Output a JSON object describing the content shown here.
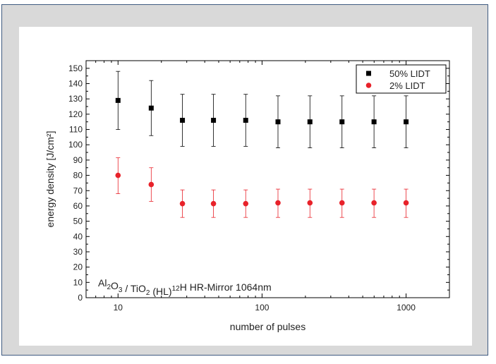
{
  "chart_data": {
    "type": "scatter",
    "xscale": "log",
    "xlim": [
      6,
      2000
    ],
    "ylim": [
      0,
      155
    ],
    "xlabel": "number of pulses",
    "ylabel": "energy density [J/cm²]",
    "xticks": [
      10,
      100,
      1000
    ],
    "yticks": [
      0,
      10,
      20,
      30,
      40,
      50,
      60,
      70,
      80,
      90,
      100,
      110,
      120,
      130,
      140,
      150
    ],
    "grid": false,
    "legend_position": "top-right",
    "annotation": {
      "parts": [
        {
          "t": "Al",
          "s": "normal"
        },
        {
          "t": "2",
          "s": "sub"
        },
        {
          "t": "O",
          "s": "normal"
        },
        {
          "t": "3",
          "s": "sub"
        },
        {
          "t": " / TiO",
          "s": "normal"
        },
        {
          "t": "2",
          "s": "sub"
        },
        {
          "t": " (HL)",
          "s": "normal"
        },
        {
          "t": "12",
          "s": "sup"
        },
        {
          "t": "H HR-Mirror 1064nm",
          "s": "normal"
        }
      ]
    },
    "series": [
      {
        "name": "50% LIDT",
        "marker": "square",
        "color": "#000000",
        "x": [
          10,
          17,
          28,
          46,
          77,
          129,
          215,
          359,
          599,
          1000
        ],
        "y": [
          129,
          124,
          116,
          116,
          116,
          115,
          115,
          115,
          115,
          115
        ],
        "err_low": [
          110,
          106,
          99,
          99,
          99,
          98,
          98,
          98,
          98,
          98
        ],
        "err_high": [
          148,
          142,
          133,
          133,
          133,
          132,
          132,
          132,
          132,
          132
        ]
      },
      {
        "name": "2% LIDT",
        "marker": "circle",
        "color": "#e8222a",
        "x": [
          10,
          17,
          28,
          46,
          77,
          129,
          215,
          359,
          599,
          1000
        ],
        "y": [
          80,
          74,
          61.5,
          61.5,
          61.5,
          62,
          62,
          62,
          62,
          62
        ],
        "err_low": [
          68,
          63,
          52.5,
          52.5,
          52.5,
          52.5,
          52.5,
          52.5,
          52.5,
          52.5
        ],
        "err_high": [
          91.5,
          85,
          70.5,
          70.5,
          70.5,
          71,
          71,
          71,
          71,
          71
        ]
      }
    ]
  }
}
